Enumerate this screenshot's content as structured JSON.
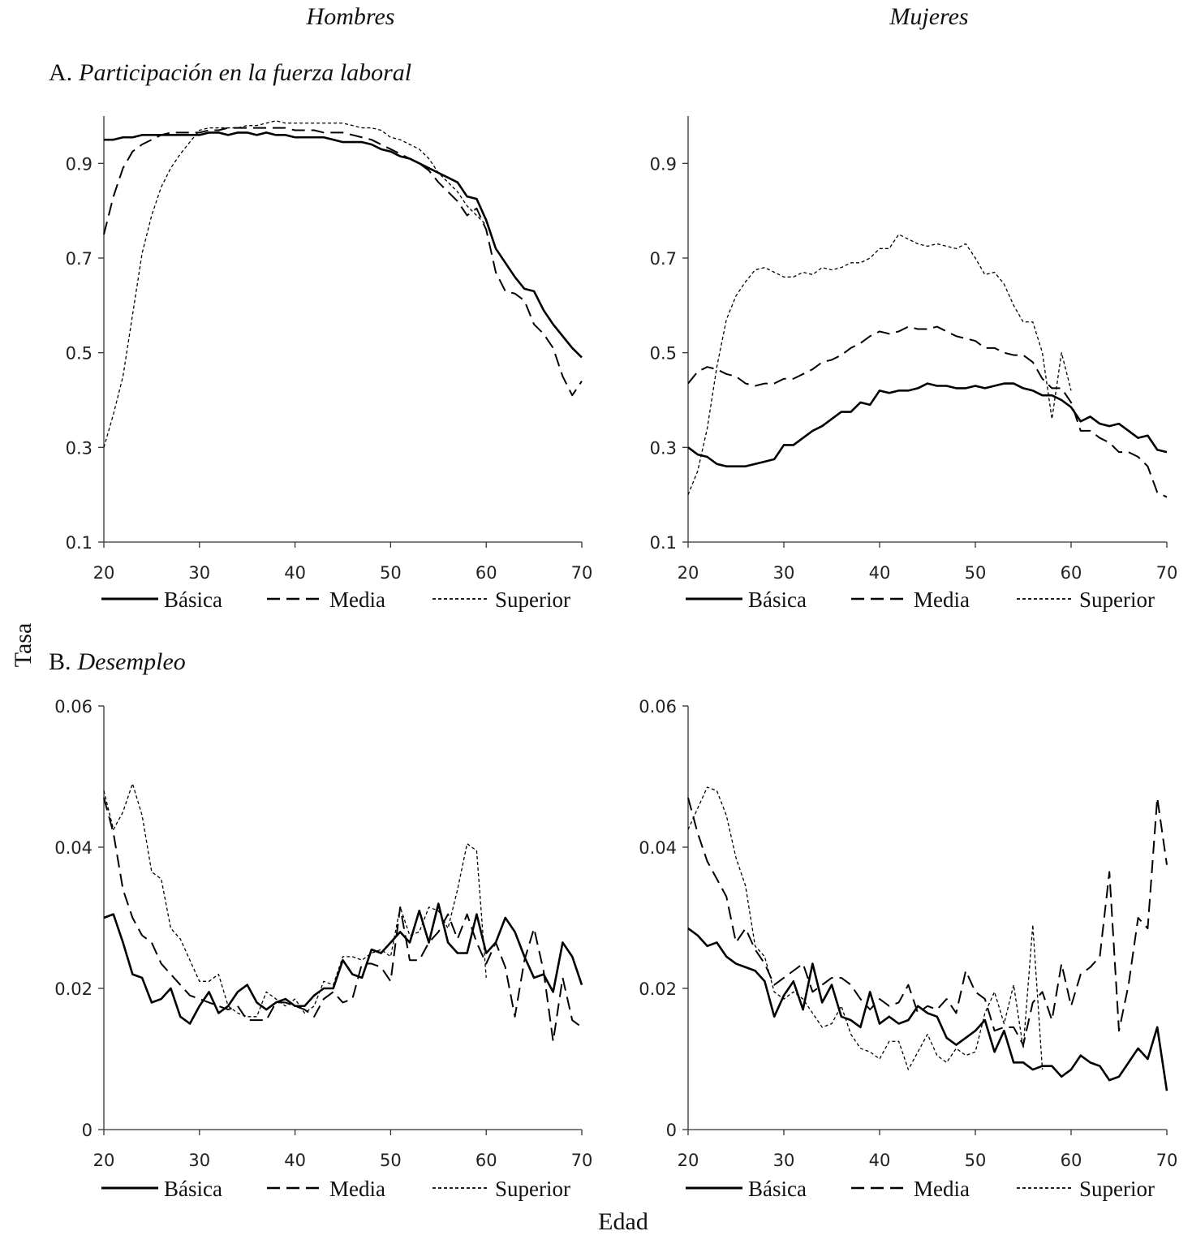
{
  "labels": {
    "column_left": "Hombres",
    "column_right": "Mujeres",
    "section_a": {
      "letter": "A.",
      "title": "Participación en la fuerza laboral"
    },
    "section_b": {
      "letter": "B.",
      "title": "Desempleo"
    },
    "ylabel": "Tasa",
    "xlabel": "Edad"
  },
  "chart_data": [
    {
      "type": "line",
      "xlim": [
        20,
        70
      ],
      "xticks": [
        20,
        30,
        40,
        50,
        60,
        70
      ],
      "ylim": [
        0.1,
        1.0
      ],
      "yticks": [
        0.1,
        0.3,
        0.5,
        0.7,
        0.9
      ],
      "x": [
        20,
        21,
        22,
        23,
        24,
        25,
        26,
        27,
        28,
        29,
        30,
        31,
        32,
        33,
        34,
        35,
        36,
        37,
        38,
        39,
        40,
        41,
        42,
        43,
        44,
        45,
        46,
        47,
        48,
        49,
        50,
        51,
        52,
        53,
        54,
        55,
        56,
        57,
        58,
        59,
        60,
        61,
        62,
        63,
        64,
        65,
        66,
        67,
        68,
        69,
        70
      ],
      "series": [
        {
          "name": "Básica",
          "color": "#000000",
          "dash": "solid",
          "values": [
            0.95,
            0.95,
            0.955,
            0.955,
            0.96,
            0.96,
            0.96,
            0.96,
            0.96,
            0.96,
            0.96,
            0.965,
            0.965,
            0.96,
            0.965,
            0.965,
            0.96,
            0.965,
            0.96,
            0.96,
            0.955,
            0.955,
            0.955,
            0.955,
            0.95,
            0.945,
            0.945,
            0.945,
            0.94,
            0.93,
            0.925,
            0.915,
            0.91,
            0.9,
            0.89,
            0.88,
            0.87,
            0.86,
            0.83,
            0.825,
            0.78,
            0.72,
            0.69,
            0.66,
            0.635,
            0.63,
            0.59,
            0.56,
            0.535,
            0.51,
            0.49
          ]
        },
        {
          "name": "Media",
          "color": "#000000",
          "dash": "dashed",
          "values": [
            0.75,
            0.83,
            0.89,
            0.925,
            0.94,
            0.95,
            0.96,
            0.965,
            0.965,
            0.965,
            0.965,
            0.97,
            0.97,
            0.975,
            0.975,
            0.975,
            0.975,
            0.975,
            0.975,
            0.975,
            0.97,
            0.97,
            0.97,
            0.965,
            0.965,
            0.965,
            0.96,
            0.955,
            0.95,
            0.94,
            0.93,
            0.92,
            0.91,
            0.9,
            0.885,
            0.86,
            0.84,
            0.82,
            0.79,
            0.805,
            0.76,
            0.67,
            0.63,
            0.625,
            0.61,
            0.56,
            0.54,
            0.51,
            0.45,
            0.41,
            0.44
          ]
        },
        {
          "name": "Superior",
          "color": "#000000",
          "dash": "dotted",
          "values": [
            0.3,
            0.37,
            0.45,
            0.58,
            0.71,
            0.79,
            0.85,
            0.89,
            0.92,
            0.945,
            0.97,
            0.975,
            0.975,
            0.975,
            0.975,
            0.98,
            0.98,
            0.985,
            0.99,
            0.985,
            0.985,
            0.985,
            0.985,
            0.985,
            0.985,
            0.985,
            0.98,
            0.975,
            0.975,
            0.97,
            0.955,
            0.95,
            0.94,
            0.93,
            0.91,
            0.88,
            0.86,
            0.84,
            0.81,
            0.79,
            0.77,
            null,
            null,
            null,
            null,
            null,
            null,
            null,
            null,
            null,
            null
          ]
        }
      ]
    },
    {
      "type": "line",
      "xlim": [
        20,
        70
      ],
      "xticks": [
        20,
        30,
        40,
        50,
        60,
        70
      ],
      "ylim": [
        0.1,
        1.0
      ],
      "yticks": [
        0.1,
        0.3,
        0.5,
        0.7,
        0.9
      ],
      "x": [
        20,
        21,
        22,
        23,
        24,
        25,
        26,
        27,
        28,
        29,
        30,
        31,
        32,
        33,
        34,
        35,
        36,
        37,
        38,
        39,
        40,
        41,
        42,
        43,
        44,
        45,
        46,
        47,
        48,
        49,
        50,
        51,
        52,
        53,
        54,
        55,
        56,
        57,
        58,
        59,
        60,
        61,
        62,
        63,
        64,
        65,
        66,
        67,
        68,
        69,
        70
      ],
      "series": [
        {
          "name": "Básica",
          "color": "#000000",
          "dash": "solid",
          "values": [
            0.3,
            0.285,
            0.28,
            0.265,
            0.26,
            0.26,
            0.26,
            0.265,
            0.27,
            0.275,
            0.305,
            0.305,
            0.32,
            0.335,
            0.345,
            0.36,
            0.375,
            0.375,
            0.395,
            0.39,
            0.42,
            0.415,
            0.42,
            0.42,
            0.425,
            0.435,
            0.43,
            0.43,
            0.425,
            0.425,
            0.43,
            0.425,
            0.43,
            0.435,
            0.435,
            0.425,
            0.42,
            0.41,
            0.41,
            0.4,
            0.385,
            0.355,
            0.365,
            0.35,
            0.345,
            0.35,
            0.335,
            0.32,
            0.325,
            0.295,
            0.29
          ]
        },
        {
          "name": "Media",
          "color": "#000000",
          "dash": "dashed",
          "values": [
            0.435,
            0.46,
            0.47,
            0.465,
            0.455,
            0.45,
            0.435,
            0.43,
            0.435,
            0.435,
            0.445,
            0.445,
            0.455,
            0.465,
            0.48,
            0.485,
            0.495,
            0.51,
            0.52,
            0.535,
            0.545,
            0.54,
            0.545,
            0.555,
            0.55,
            0.55,
            0.555,
            0.545,
            0.535,
            0.53,
            0.525,
            0.51,
            0.51,
            0.5,
            0.495,
            0.495,
            0.48,
            0.445,
            0.425,
            0.425,
            0.395,
            0.335,
            0.335,
            0.32,
            0.31,
            0.29,
            0.29,
            0.28,
            0.26,
            0.205,
            0.195
          ]
        },
        {
          "name": "Superior",
          "color": "#000000",
          "dash": "dotted",
          "values": [
            0.2,
            0.25,
            0.34,
            0.47,
            0.57,
            0.62,
            0.65,
            0.675,
            0.68,
            0.67,
            0.66,
            0.66,
            0.67,
            0.665,
            0.68,
            0.675,
            0.68,
            0.69,
            0.69,
            0.7,
            0.72,
            0.72,
            0.75,
            0.74,
            0.73,
            0.725,
            0.73,
            0.725,
            0.72,
            0.73,
            0.7,
            0.665,
            0.67,
            0.645,
            0.6,
            0.565,
            0.565,
            0.5,
            0.36,
            0.5,
            0.42,
            null,
            null,
            null,
            null,
            null,
            null,
            null,
            null,
            null,
            null
          ]
        }
      ]
    },
    {
      "type": "line",
      "xlim": [
        20,
        70
      ],
      "xticks": [
        20,
        30,
        40,
        50,
        60,
        70
      ],
      "ylim": [
        0,
        0.06
      ],
      "yticks": [
        0,
        0.02,
        0.04,
        0.06
      ],
      "x": [
        20,
        21,
        22,
        23,
        24,
        25,
        26,
        27,
        28,
        29,
        30,
        31,
        32,
        33,
        34,
        35,
        36,
        37,
        38,
        39,
        40,
        41,
        42,
        43,
        44,
        45,
        46,
        47,
        48,
        49,
        50,
        51,
        52,
        53,
        54,
        55,
        56,
        57,
        58,
        59,
        60,
        61,
        62,
        63,
        64,
        65,
        66,
        67,
        68,
        69,
        70
      ],
      "series": [
        {
          "name": "Básica",
          "color": "#000000",
          "dash": "solid",
          "values": [
            0.03,
            0.0305,
            0.0265,
            0.022,
            0.0215,
            0.018,
            0.0185,
            0.02,
            0.016,
            0.015,
            0.0175,
            0.0195,
            0.0165,
            0.0175,
            0.0195,
            0.0205,
            0.018,
            0.017,
            0.018,
            0.0185,
            0.0175,
            0.0175,
            0.019,
            0.02,
            0.02,
            0.024,
            0.022,
            0.0215,
            0.0255,
            0.025,
            0.0265,
            0.028,
            0.0265,
            0.031,
            0.0265,
            0.032,
            0.0265,
            0.025,
            0.025,
            0.0305,
            0.025,
            0.0265,
            0.03,
            0.028,
            0.0245,
            0.0215,
            0.022,
            0.0195,
            0.0265,
            0.0245,
            0.0205
          ]
        },
        {
          "name": "Media",
          "color": "#000000",
          "dash": "dashed",
          "values": [
            0.047,
            0.042,
            0.034,
            0.03,
            0.0275,
            0.0265,
            0.0235,
            0.022,
            0.0205,
            0.019,
            0.0185,
            0.018,
            0.0175,
            0.017,
            0.0175,
            0.0155,
            0.0155,
            0.0155,
            0.018,
            0.018,
            0.0175,
            0.017,
            0.016,
            0.0185,
            0.0195,
            0.018,
            0.0185,
            0.0235,
            0.0235,
            0.023,
            0.021,
            0.0315,
            0.024,
            0.024,
            0.0265,
            0.028,
            0.0305,
            0.027,
            0.0305,
            0.0265,
            0.0235,
            0.0265,
            0.023,
            0.016,
            0.024,
            0.0285,
            0.0225,
            0.0125,
            0.0215,
            0.0155,
            0.0145
          ]
        },
        {
          "name": "Superior",
          "color": "#000000",
          "dash": "dotted",
          "values": [
            0.048,
            0.0425,
            0.045,
            0.049,
            0.0445,
            0.0365,
            0.0355,
            0.0285,
            0.027,
            0.024,
            0.021,
            0.021,
            0.022,
            0.0175,
            0.0165,
            0.016,
            0.016,
            0.0195,
            0.0185,
            0.0175,
            0.0185,
            0.0165,
            0.0175,
            0.021,
            0.0205,
            0.0245,
            0.0245,
            0.024,
            0.025,
            0.0255,
            0.0245,
            0.0315,
            0.0275,
            0.028,
            0.0315,
            0.031,
            0.0285,
            0.034,
            0.0405,
            0.0395,
            0.0215,
            null,
            null,
            null,
            null,
            null,
            null,
            null,
            null,
            null,
            null
          ]
        }
      ]
    },
    {
      "type": "line",
      "xlim": [
        20,
        70
      ],
      "xticks": [
        20,
        30,
        40,
        50,
        60,
        70
      ],
      "ylim": [
        0,
        0.06
      ],
      "yticks": [
        0,
        0.02,
        0.04,
        0.06
      ],
      "x": [
        20,
        21,
        22,
        23,
        24,
        25,
        26,
        27,
        28,
        29,
        30,
        31,
        32,
        33,
        34,
        35,
        36,
        37,
        38,
        39,
        40,
        41,
        42,
        43,
        44,
        45,
        46,
        47,
        48,
        49,
        50,
        51,
        52,
        53,
        54,
        55,
        56,
        57,
        58,
        59,
        60,
        61,
        62,
        63,
        64,
        65,
        66,
        67,
        68,
        69,
        70
      ],
      "series": [
        {
          "name": "Básica",
          "color": "#000000",
          "dash": "solid",
          "values": [
            0.0285,
            0.0275,
            0.026,
            0.0265,
            0.0245,
            0.0235,
            0.023,
            0.0225,
            0.021,
            0.016,
            0.019,
            0.021,
            0.017,
            0.0235,
            0.018,
            0.0205,
            0.016,
            0.0155,
            0.0145,
            0.0195,
            0.015,
            0.016,
            0.015,
            0.0155,
            0.0175,
            0.0165,
            0.016,
            0.013,
            0.012,
            0.013,
            0.014,
            0.0155,
            0.011,
            0.014,
            0.0095,
            0.0095,
            0.0085,
            0.009,
            0.009,
            0.0075,
            0.0085,
            0.0105,
            0.0095,
            0.009,
            0.007,
            0.0075,
            0.0095,
            0.0115,
            0.01,
            0.0145,
            0.0055
          ]
        },
        {
          "name": "Media",
          "color": "#000000",
          "dash": "dashed",
          "values": [
            0.047,
            0.042,
            0.038,
            0.0355,
            0.033,
            0.0265,
            0.0285,
            0.0255,
            0.0235,
            0.0205,
            0.0215,
            0.0225,
            0.0235,
            0.0195,
            0.0205,
            0.0215,
            0.0215,
            0.0205,
            0.0185,
            0.017,
            0.0185,
            0.0175,
            0.018,
            0.0205,
            0.0165,
            0.0175,
            0.017,
            0.0185,
            0.0165,
            0.0225,
            0.0195,
            0.0185,
            0.014,
            0.0145,
            0.0145,
            0.012,
            0.018,
            0.0195,
            0.0155,
            0.0235,
            0.0175,
            0.022,
            0.023,
            0.0245,
            0.0365,
            0.014,
            0.0205,
            0.03,
            0.0285,
            0.047,
            0.0375
          ]
        },
        {
          "name": "Superior",
          "color": "#000000",
          "dash": "dotted",
          "values": [
            0.0425,
            0.0455,
            0.0485,
            0.048,
            0.0445,
            0.0385,
            0.0345,
            0.026,
            0.0245,
            0.0195,
            0.0185,
            0.0195,
            0.0185,
            0.0165,
            0.0145,
            0.015,
            0.0175,
            0.0135,
            0.0115,
            0.011,
            0.01,
            0.0125,
            0.0125,
            0.0085,
            0.011,
            0.0135,
            0.0105,
            0.0095,
            0.0115,
            0.0105,
            0.011,
            0.0165,
            0.0195,
            0.015,
            0.0205,
            0.0115,
            0.029,
            0.0085,
            null,
            null,
            null,
            null,
            null,
            null,
            null,
            null,
            null,
            null,
            null,
            null,
            null
          ]
        }
      ]
    }
  ]
}
